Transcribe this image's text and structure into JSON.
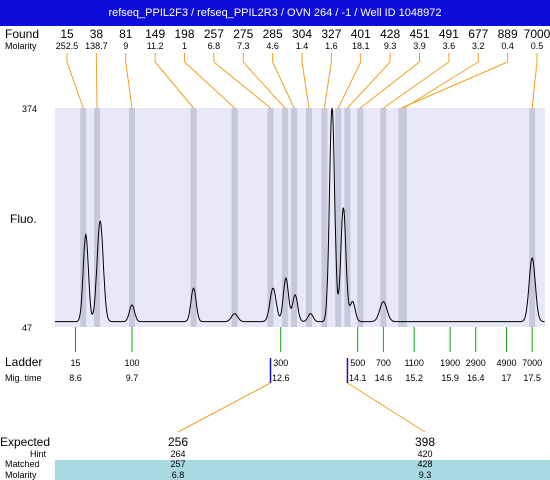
{
  "title": "refseq_PPIL2F3 / refseq_PPIL2R3 / OVN 264 / -1 / Well ID 1048972",
  "labels": {
    "found": "Found",
    "molarity": "Molarity",
    "y_axis": "Fluo.",
    "ladder": "Ladder",
    "mig_time": "Mig. time",
    "expected": "Expected",
    "hint": "Hint",
    "matched": "Matched",
    "molarity_row": "Molarity"
  },
  "colors": {
    "title_bg": "#0d0ddb",
    "plot_bg": "#e8e8f8",
    "band": "#c8c8dc",
    "connector": "#f0a020",
    "ladder_tick": "#10a010",
    "expected_marker": "#1010c0",
    "matched_bg": "#a8d8e0",
    "trace": "#000000"
  },
  "chart_data": {
    "type": "line",
    "y_axis_label": "Fluo.",
    "ylim": [
      47,
      374
    ],
    "xlim": [
      8.2,
      17.75
    ],
    "x_unit": "Mig. time",
    "found_peaks": [
      {
        "size": "15",
        "molarity": "252.5",
        "time": 8.75
      },
      {
        "size": "38",
        "molarity": "138.7",
        "time": 9.02
      },
      {
        "size": "81",
        "molarity": "9",
        "time": 9.7
      },
      {
        "size": "149",
        "molarity": "11.2",
        "time": 10.9
      },
      {
        "size": "198",
        "molarity": "1",
        "time": 11.7
      },
      {
        "size": "257",
        "molarity": "6.8",
        "time": 12.4
      },
      {
        "size": "275",
        "molarity": "7.3",
        "time": 12.68
      },
      {
        "size": "285",
        "molarity": "4.6",
        "time": 12.86
      },
      {
        "size": "304",
        "molarity": "1.4",
        "time": 13.15
      },
      {
        "size": "327",
        "molarity": "1.6",
        "time": 13.45
      },
      {
        "size": "401",
        "molarity": "18.1",
        "time": 13.72
      },
      {
        "size": "428",
        "molarity": "9.3",
        "time": 13.9
      },
      {
        "size": "451",
        "molarity": "3.9",
        "time": 14.15
      },
      {
        "size": "491",
        "molarity": "3.6",
        "time": 14.6
      },
      {
        "size": "677",
        "molarity": "3.2",
        "time": 15.0
      },
      {
        "size": "889",
        "molarity": "0.4",
        "time": 14.95
      },
      {
        "size": "7000",
        "molarity": "0.5",
        "time": 17.5
      }
    ],
    "ladder": [
      {
        "size": "15",
        "time": "8.6"
      },
      {
        "size": "100",
        "time": "9.7"
      },
      {
        "size": "300",
        "time": "12.6"
      },
      {
        "size": "500",
        "time": "14.1"
      },
      {
        "size": "700",
        "time": "14.6"
      },
      {
        "size": "1100",
        "time": "15.2"
      },
      {
        "size": "1900",
        "time": "15.9"
      },
      {
        "size": "2900",
        "time": "16.4"
      },
      {
        "size": "4900",
        "time": "17"
      },
      {
        "size": "7000",
        "time": "17.5"
      }
    ],
    "expected": [
      {
        "expected": "256",
        "hint": "264",
        "matched": "257",
        "molarity": "6.8"
      },
      {
        "expected": "398",
        "hint": "420",
        "matched": "428",
        "molarity": "9.3"
      }
    ],
    "trace_peaks": [
      {
        "time": 8.8,
        "height": 130,
        "width": 0.05
      },
      {
        "time": 9.08,
        "height": 150,
        "width": 0.06
      },
      {
        "time": 9.7,
        "height": 25,
        "width": 0.05
      },
      {
        "time": 10.9,
        "height": 50,
        "width": 0.05
      },
      {
        "time": 11.7,
        "height": 12,
        "width": 0.06
      },
      {
        "time": 12.45,
        "height": 50,
        "width": 0.06
      },
      {
        "time": 12.7,
        "height": 65,
        "width": 0.05
      },
      {
        "time": 12.88,
        "height": 40,
        "width": 0.05
      },
      {
        "time": 13.18,
        "height": 12,
        "width": 0.05
      },
      {
        "time": 13.6,
        "height": 320,
        "width": 0.05
      },
      {
        "time": 13.82,
        "height": 170,
        "width": 0.05
      },
      {
        "time": 14.0,
        "height": 30,
        "width": 0.05
      },
      {
        "time": 14.6,
        "height": 30,
        "width": 0.07
      },
      {
        "time": 17.5,
        "height": 95,
        "width": 0.06
      }
    ]
  }
}
